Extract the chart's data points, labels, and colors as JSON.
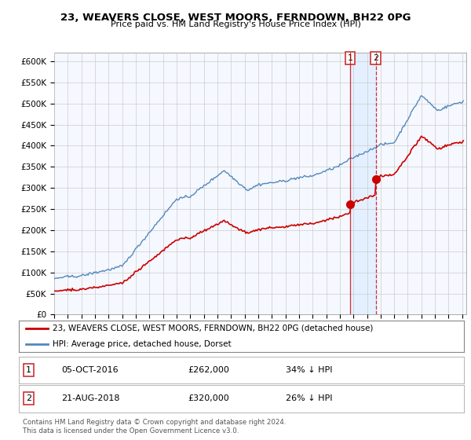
{
  "title": "23, WEAVERS CLOSE, WEST MOORS, FERNDOWN, BH22 0PG",
  "subtitle": "Price paid vs. HM Land Registry's House Price Index (HPI)",
  "ylabel_ticks": [
    "£0",
    "£50K",
    "£100K",
    "£150K",
    "£200K",
    "£250K",
    "£300K",
    "£350K",
    "£400K",
    "£450K",
    "£500K",
    "£550K",
    "£600K"
  ],
  "ytick_values": [
    0,
    50000,
    100000,
    150000,
    200000,
    250000,
    300000,
    350000,
    400000,
    450000,
    500000,
    550000,
    600000
  ],
  "sale1": {
    "date": "05-OCT-2016",
    "price": 262000,
    "pct": "34% ↓ HPI",
    "x": 2016.75
  },
  "sale2": {
    "date": "21-AUG-2018",
    "price": 320000,
    "pct": "26% ↓ HPI",
    "x": 2018.64
  },
  "legend_red": "23, WEAVERS CLOSE, WEST MOORS, FERNDOWN, BH22 0PG (detached house)",
  "legend_blue": "HPI: Average price, detached house, Dorset",
  "copyright": "Contains HM Land Registry data © Crown copyright and database right 2024.\nThis data is licensed under the Open Government Licence v3.0.",
  "red_color": "#cc0000",
  "blue_color": "#5588bb",
  "shade_color": "#ddeeff",
  "background_color": "#ffffff",
  "grid_color": "#cccccc",
  "chart_bg": "#f5f8ff"
}
